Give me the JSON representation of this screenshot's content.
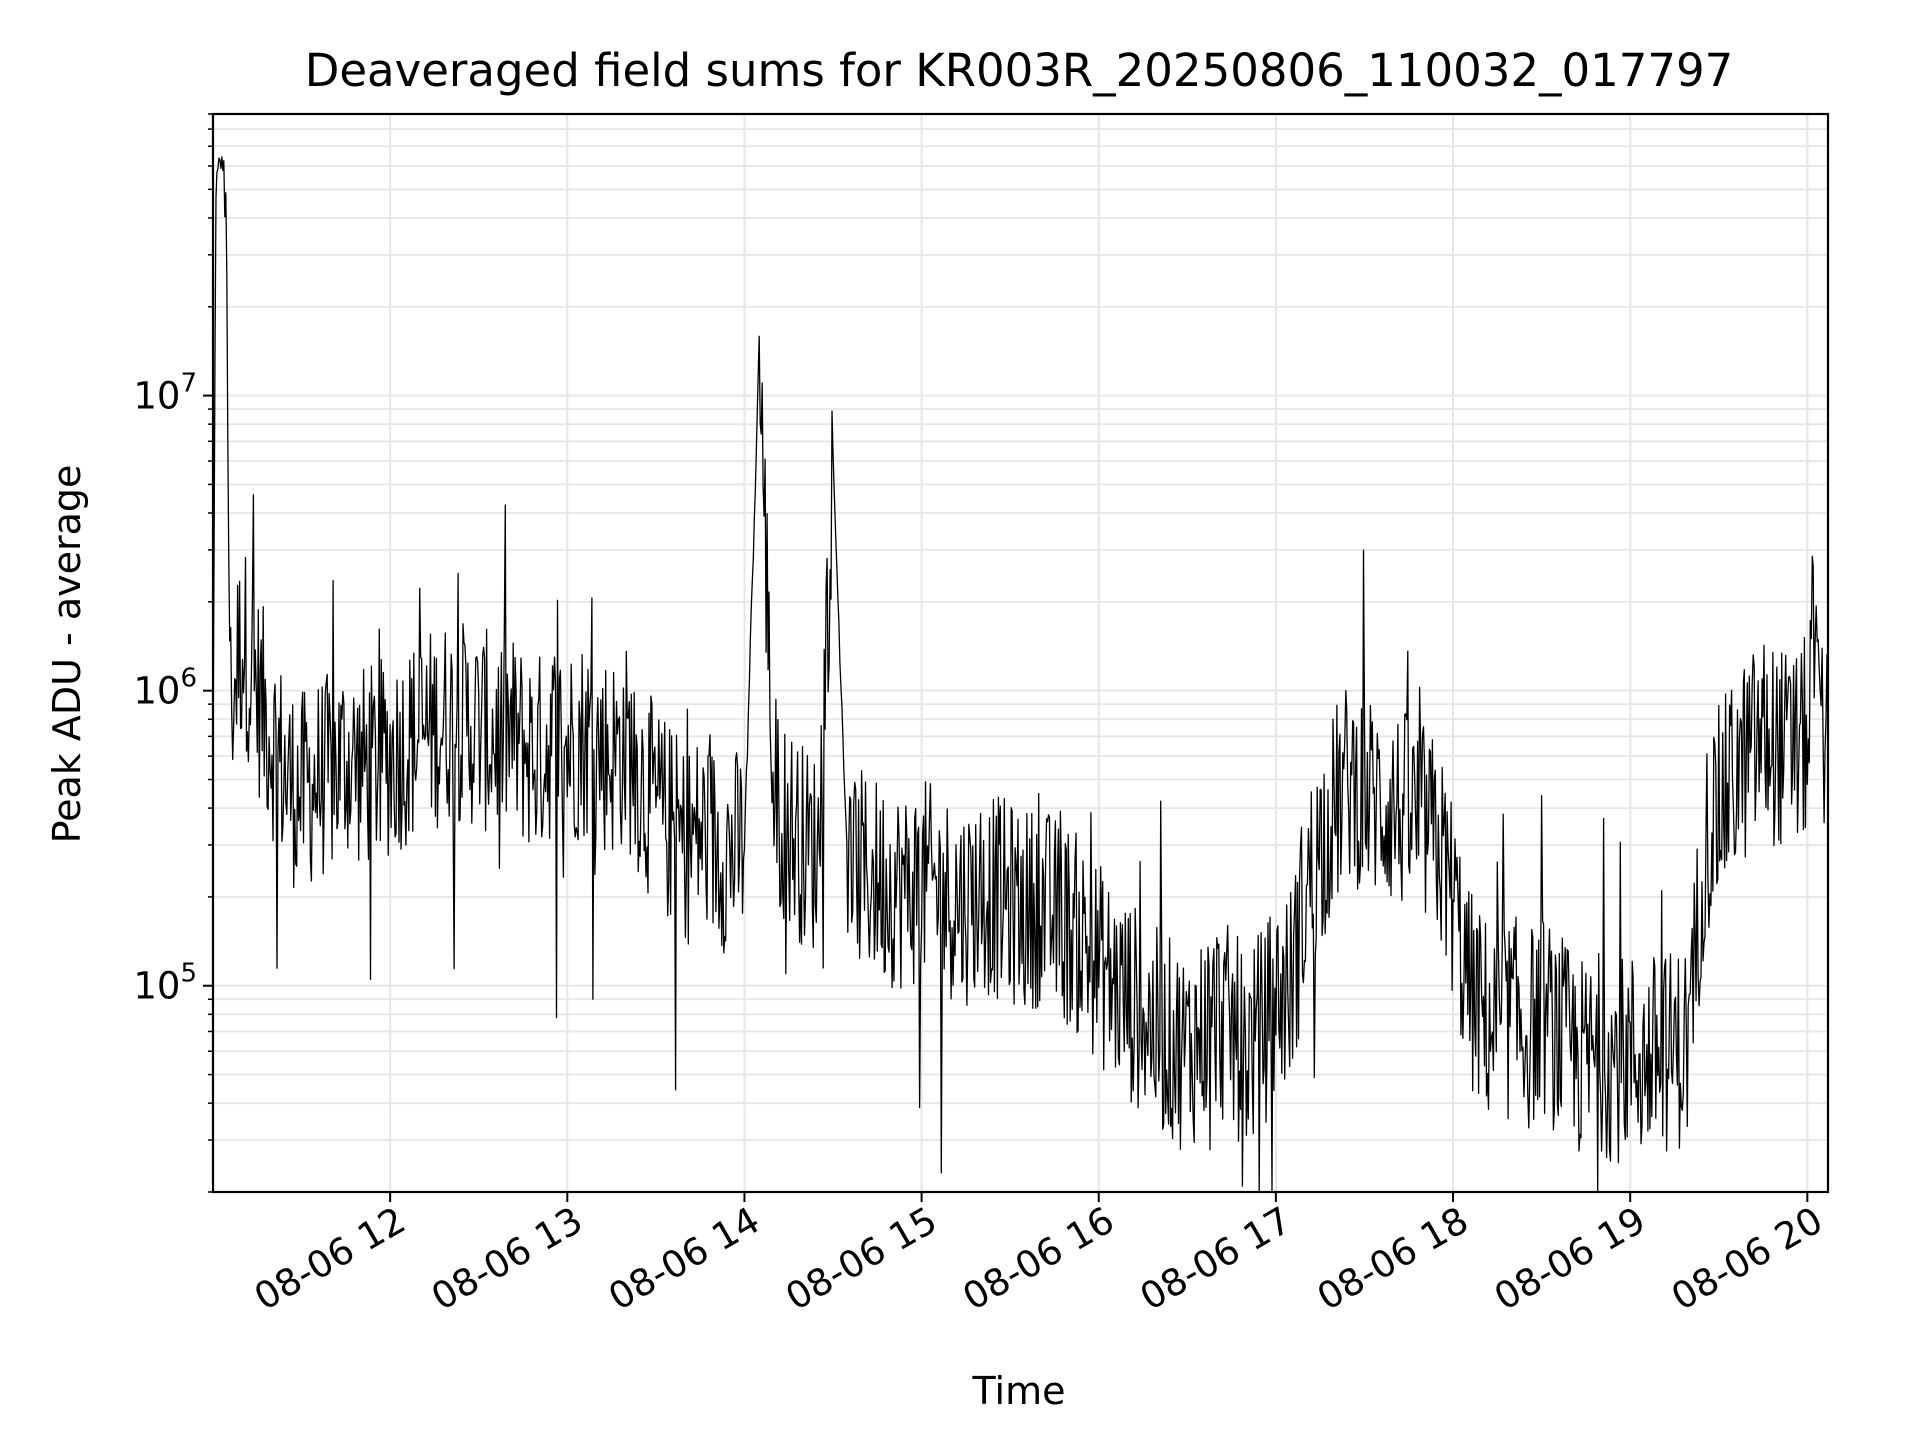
{
  "chart_data": {
    "type": "line",
    "title": "Deaveraged field sums for KR003R_20250806_110032_017797",
    "xlabel": "Time",
    "ylabel": "Peak ADU - average",
    "y_scale": "log",
    "grid": true,
    "grid_minor": true,
    "line_color": "#000000",
    "xlim": [
      "08-06 11:00",
      "08-06 20:07"
    ],
    "ylim": [
      20000,
      90000000
    ],
    "x_ticks": [
      "08-06 12",
      "08-06 13",
      "08-06 14",
      "08-06 15",
      "08-06 16",
      "08-06 17",
      "08-06 18",
      "08-06 19",
      "08-06 20"
    ],
    "y_ticks": [
      {
        "base": "10",
        "exp": "5",
        "value": 100000
      },
      {
        "base": "10",
        "exp": "6",
        "value": 1000000
      },
      {
        "base": "10",
        "exp": "7",
        "value": 10000000
      }
    ],
    "series": [
      {
        "x": [
          "08-06 11:00",
          "08-06 11:01",
          "08-06 11:02",
          "08-06 11:04",
          "08-06 11:06",
          "08-06 11:08",
          "08-06 11:10",
          "08-06 11:15",
          "08-06 11:20",
          "08-06 11:25",
          "08-06 11:30",
          "08-06 11:35",
          "08-06 11:40",
          "08-06 11:45",
          "08-06 11:50",
          "08-06 11:55",
          "08-06 12:00",
          "08-06 12:05",
          "08-06 12:10",
          "08-06 12:15",
          "08-06 12:20",
          "08-06 12:25",
          "08-06 12:30",
          "08-06 12:35",
          "08-06 12:40",
          "08-06 12:45",
          "08-06 12:50",
          "08-06 12:55",
          "08-06 13:00",
          "08-06 13:05",
          "08-06 13:10",
          "08-06 13:15",
          "08-06 13:20",
          "08-06 13:25",
          "08-06 13:30",
          "08-06 13:35",
          "08-06 13:40",
          "08-06 13:45",
          "08-06 13:50",
          "08-06 13:55",
          "08-06 14:00",
          "08-06 14:05",
          "08-06 14:10",
          "08-06 14:15",
          "08-06 14:20",
          "08-06 14:25",
          "08-06 14:30",
          "08-06 14:35",
          "08-06 14:40",
          "08-06 14:45",
          "08-06 14:50",
          "08-06 14:55",
          "08-06 15:00",
          "08-06 15:05",
          "08-06 15:10",
          "08-06 15:15",
          "08-06 15:20",
          "08-06 15:25",
          "08-06 15:30",
          "08-06 15:35",
          "08-06 15:40",
          "08-06 15:45",
          "08-06 15:50",
          "08-06 15:55",
          "08-06 16:00",
          "08-06 16:05",
          "08-06 16:10",
          "08-06 16:15",
          "08-06 16:20",
          "08-06 16:25",
          "08-06 16:30",
          "08-06 16:35",
          "08-06 16:40",
          "08-06 16:45",
          "08-06 16:50",
          "08-06 16:55",
          "08-06 17:00",
          "08-06 17:05",
          "08-06 17:10",
          "08-06 17:15",
          "08-06 17:20",
          "08-06 17:25",
          "08-06 17:30",
          "08-06 17:35",
          "08-06 17:40",
          "08-06 17:45",
          "08-06 17:50",
          "08-06 17:55",
          "08-06 18:00",
          "08-06 18:05",
          "08-06 18:10",
          "08-06 18:15",
          "08-06 18:20",
          "08-06 18:25",
          "08-06 18:30",
          "08-06 18:35",
          "08-06 18:40",
          "08-06 18:45",
          "08-06 18:50",
          "08-06 18:55",
          "08-06 19:00",
          "08-06 19:05",
          "08-06 19:10",
          "08-06 19:15",
          "08-06 19:20",
          "08-06 19:25",
          "08-06 19:30",
          "08-06 19:35",
          "08-06 19:40",
          "08-06 19:45",
          "08-06 19:50",
          "08-06 19:55",
          "08-06 20:00",
          "08-06 20:03",
          "08-06 20:05",
          "08-06 20:07"
        ],
        "values": [
          450000,
          50000000,
          60000000,
          62000000,
          900000,
          1200000,
          1500000,
          1000000,
          700000,
          500000,
          450000,
          500000,
          520000,
          600000,
          550000,
          560000,
          600000,
          650000,
          700000,
          750000,
          800000,
          780000,
          750000,
          700000,
          720000,
          650000,
          600000,
          700000,
          650000,
          700000,
          650000,
          600000,
          650000,
          500000,
          400000,
          350000,
          300000,
          330000,
          300000,
          280000,
          300000,
          14000000,
          400000,
          350000,
          300000,
          280000,
          6000000,
          250000,
          240000,
          230000,
          220000,
          210000,
          230000,
          210000,
          200000,
          190000,
          210000,
          200000,
          190000,
          180000,
          190000,
          170000,
          160000,
          140000,
          120000,
          100000,
          90000,
          80000,
          70000,
          65000,
          60000,
          70000,
          80000,
          70000,
          60000,
          70000,
          90000,
          100000,
          200000,
          300000,
          400000,
          500000,
          450000,
          420000,
          400000,
          380000,
          350000,
          300000,
          200000,
          100000,
          80000,
          70000,
          80000,
          70000,
          80000,
          70000,
          60000,
          55000,
          60000,
          55000,
          60000,
          55000,
          60000,
          60000,
          65000,
          300000,
          400000,
          500000,
          600000,
          700000,
          650000,
          600000,
          700000,
          1800000,
          800000,
          650000
        ]
      }
    ]
  }
}
